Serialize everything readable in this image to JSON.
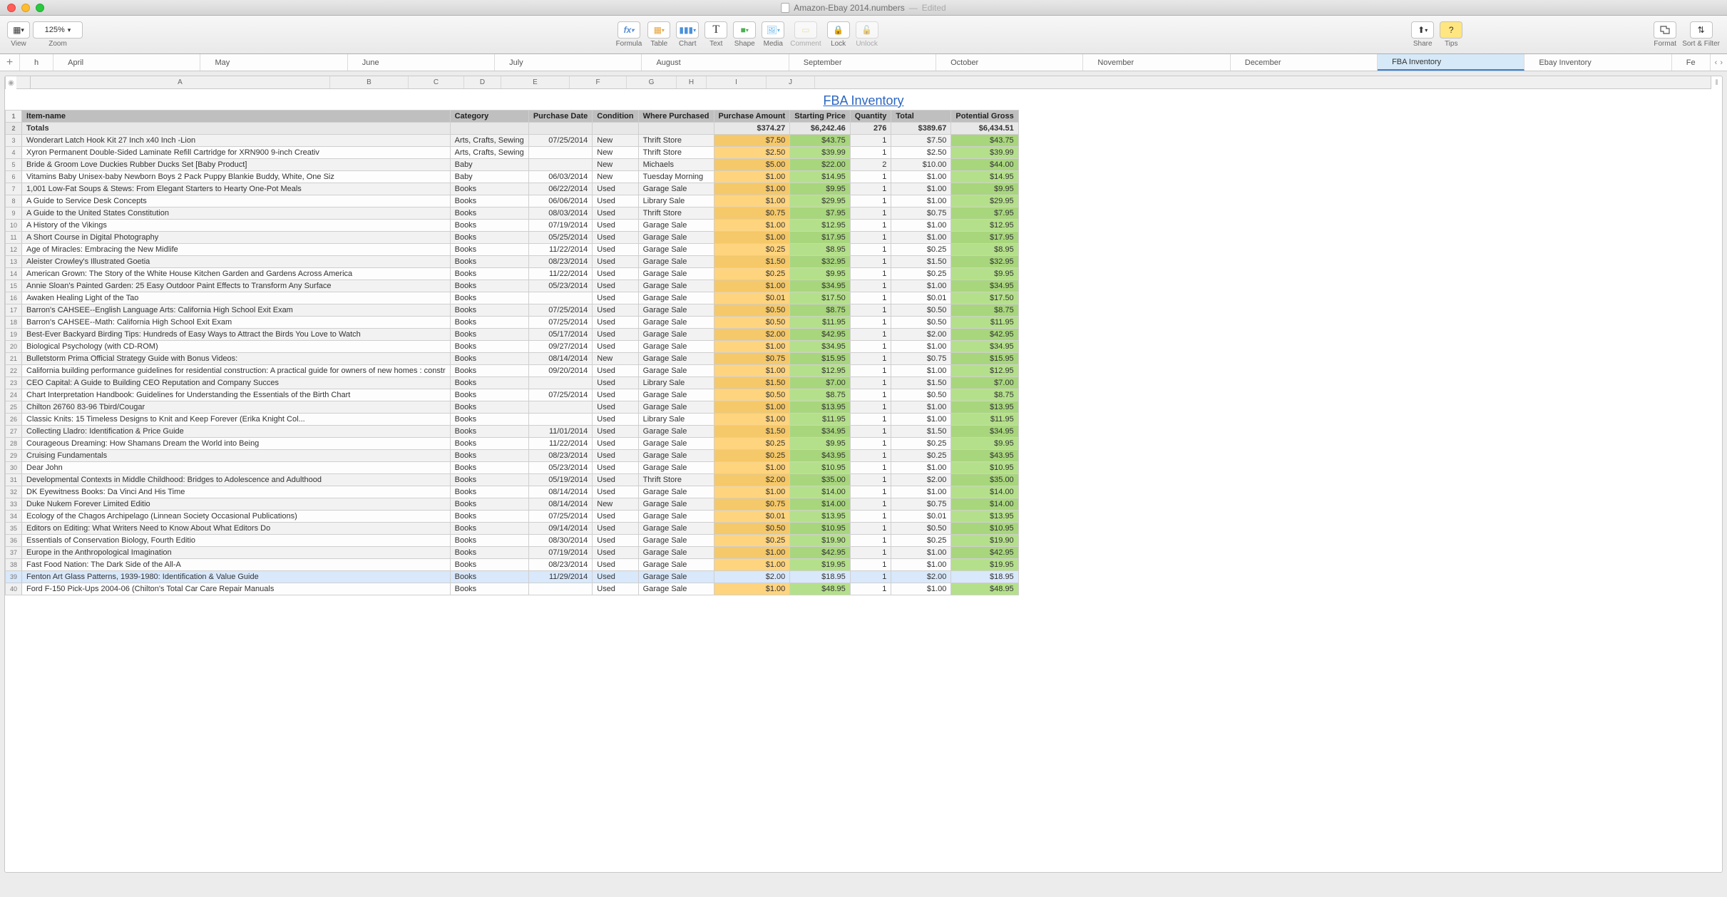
{
  "window": {
    "title": "Amazon-Ebay 2014.numbers",
    "edited": "Edited"
  },
  "toolbar": {
    "view": "View",
    "zoom": "Zoom",
    "zoom_value": "125%",
    "formula": "Formula",
    "table": "Table",
    "chart": "Chart",
    "text": "Text",
    "shape": "Shape",
    "media": "Media",
    "comment": "Comment",
    "lock": "Lock",
    "unlock": "Unlock",
    "share": "Share",
    "tips": "Tips",
    "format": "Format",
    "sortfilter": "Sort & Filter"
  },
  "tabs": [
    "h",
    "April",
    "May",
    "June",
    "July",
    "August",
    "September",
    "October",
    "November",
    "December",
    "FBA Inventory",
    "Ebay Inventory",
    "Fe"
  ],
  "active_tab": "FBA Inventory",
  "column_letters": [
    "A",
    "B",
    "C",
    "D",
    "E",
    "F",
    "G",
    "H",
    "I",
    "J"
  ],
  "sheet_title": "FBA Inventory",
  "headers": [
    "Item-name",
    "Category",
    "Purchase Date",
    "Condition",
    "Where Purchased",
    "Purchase Amount",
    "Starting Price",
    "Quantity",
    "Total",
    "Potential Gross"
  ],
  "totals": {
    "label": "Totals",
    "amount": "$374.27",
    "start": "$6,242.46",
    "qty": "276",
    "total": "$389.67",
    "gross": "$6,434.51"
  },
  "rows": [
    {
      "n": 3,
      "name": "Wonderart Latch Hook Kit 27 Inch x40 Inch -Lion",
      "cat": "Arts, Crafts, Sewing",
      "date": "07/25/2014",
      "cond": "New",
      "where": "Thrift Store",
      "amt": "$7.50",
      "start": "$43.75",
      "qty": "1",
      "tot": "$7.50",
      "gross": "$43.75"
    },
    {
      "n": 4,
      "name": "Xyron Permanent Double-Sided Laminate Refill Cartridge for XRN900 9-inch Creativ",
      "cat": "Arts, Crafts, Sewing",
      "date": "",
      "cond": "New",
      "where": "Thrift Store",
      "amt": "$2.50",
      "start": "$39.99",
      "qty": "1",
      "tot": "$2.50",
      "gross": "$39.99"
    },
    {
      "n": 5,
      "name": "Bride & Groom Love Duckies Rubber Ducks Set [Baby Product]",
      "cat": "Baby",
      "date": "",
      "cond": "New",
      "where": "Michaels",
      "amt": "$5.00",
      "start": "$22.00",
      "qty": "2",
      "tot": "$10.00",
      "gross": "$44.00"
    },
    {
      "n": 6,
      "name": "Vitamins Baby Unisex-baby Newborn Boys 2 Pack Puppy Blankie Buddy, White, One Siz",
      "cat": "Baby",
      "date": "06/03/2014",
      "cond": "New",
      "where": "Tuesday Morning",
      "amt": "$1.00",
      "start": "$14.95",
      "qty": "1",
      "tot": "$1.00",
      "gross": "$14.95"
    },
    {
      "n": 7,
      "name": "1,001 Low-Fat Soups & Stews: From Elegant Starters to Hearty One-Pot Meals",
      "cat": "Books",
      "date": "06/22/2014",
      "cond": "Used",
      "where": "Garage Sale",
      "amt": "$1.00",
      "start": "$9.95",
      "qty": "1",
      "tot": "$1.00",
      "gross": "$9.95"
    },
    {
      "n": 8,
      "name": "A Guide to Service Desk Concepts",
      "cat": "Books",
      "date": "06/06/2014",
      "cond": "Used",
      "where": "Library Sale",
      "amt": "$1.00",
      "start": "$29.95",
      "qty": "1",
      "tot": "$1.00",
      "gross": "$29.95"
    },
    {
      "n": 9,
      "name": "A Guide to the United States Constitution",
      "cat": "Books",
      "date": "08/03/2014",
      "cond": "Used",
      "where": "Thrift Store",
      "amt": "$0.75",
      "start": "$7.95",
      "qty": "1",
      "tot": "$0.75",
      "gross": "$7.95"
    },
    {
      "n": 10,
      "name": "A History of the Vikings",
      "cat": "Books",
      "date": "07/19/2014",
      "cond": "Used",
      "where": "Garage Sale",
      "amt": "$1.00",
      "start": "$12.95",
      "qty": "1",
      "tot": "$1.00",
      "gross": "$12.95"
    },
    {
      "n": 11,
      "name": "A Short Course in Digital Photography",
      "cat": "Books",
      "date": "05/25/2014",
      "cond": "Used",
      "where": "Garage Sale",
      "amt": "$1.00",
      "start": "$17.95",
      "qty": "1",
      "tot": "$1.00",
      "gross": "$17.95"
    },
    {
      "n": 12,
      "name": "Age of Miracles: Embracing the New Midlife",
      "cat": "Books",
      "date": "11/22/2014",
      "cond": "Used",
      "where": "Garage Sale",
      "amt": "$0.25",
      "start": "$8.95",
      "qty": "1",
      "tot": "$0.25",
      "gross": "$8.95"
    },
    {
      "n": 13,
      "name": "Aleister Crowley's Illustrated Goetia",
      "cat": "Books",
      "date": "08/23/2014",
      "cond": "Used",
      "where": "Garage Sale",
      "amt": "$1.50",
      "start": "$32.95",
      "qty": "1",
      "tot": "$1.50",
      "gross": "$32.95"
    },
    {
      "n": 14,
      "name": "American Grown: The Story of the White House Kitchen Garden and Gardens Across America",
      "cat": "Books",
      "date": "11/22/2014",
      "cond": "Used",
      "where": "Garage Sale",
      "amt": "$0.25",
      "start": "$9.95",
      "qty": "1",
      "tot": "$0.25",
      "gross": "$9.95"
    },
    {
      "n": 15,
      "name": "Annie Sloan's Painted Garden: 25 Easy Outdoor Paint Effects to Transform Any Surface",
      "cat": "Books",
      "date": "05/23/2014",
      "cond": "Used",
      "where": "Garage Sale",
      "amt": "$1.00",
      "start": "$34.95",
      "qty": "1",
      "tot": "$1.00",
      "gross": "$34.95"
    },
    {
      "n": 16,
      "name": "Awaken Healing Light of the Tao",
      "cat": "Books",
      "date": "",
      "cond": "Used",
      "where": "Garage Sale",
      "amt": "$0.01",
      "start": "$17.50",
      "qty": "1",
      "tot": "$0.01",
      "gross": "$17.50"
    },
    {
      "n": 17,
      "name": "Barron's CAHSEE--English Language Arts: California High School Exit Exam",
      "cat": "Books",
      "date": "07/25/2014",
      "cond": "Used",
      "where": "Garage Sale",
      "amt": "$0.50",
      "start": "$8.75",
      "qty": "1",
      "tot": "$0.50",
      "gross": "$8.75"
    },
    {
      "n": 18,
      "name": "Barron's CAHSEE--Math: California High School Exit Exam",
      "cat": "Books",
      "date": "07/25/2014",
      "cond": "Used",
      "where": "Garage Sale",
      "amt": "$0.50",
      "start": "$11.95",
      "qty": "1",
      "tot": "$0.50",
      "gross": "$11.95"
    },
    {
      "n": 19,
      "name": "Best-Ever Backyard Birding Tips: Hundreds of Easy Ways to Attract the Birds You Love to Watch",
      "cat": "Books",
      "date": "05/17/2014",
      "cond": "Used",
      "where": "Garage Sale",
      "amt": "$2.00",
      "start": "$42.95",
      "qty": "1",
      "tot": "$2.00",
      "gross": "$42.95"
    },
    {
      "n": 20,
      "name": "Biological Psychology (with CD-ROM)",
      "cat": "Books",
      "date": "09/27/2014",
      "cond": "Used",
      "where": "Garage Sale",
      "amt": "$1.00",
      "start": "$34.95",
      "qty": "1",
      "tot": "$1.00",
      "gross": "$34.95"
    },
    {
      "n": 21,
      "name": "Bulletstorm Prima Official Strategy Guide with Bonus Videos:",
      "cat": "Books",
      "date": "08/14/2014",
      "cond": "New",
      "where": "Garage Sale",
      "amt": "$0.75",
      "start": "$15.95",
      "qty": "1",
      "tot": "$0.75",
      "gross": "$15.95"
    },
    {
      "n": 22,
      "name": "California building performance guidelines for residential construction: A practical guide for owners of new homes : constr",
      "cat": "Books",
      "date": "09/20/2014",
      "cond": "Used",
      "where": "Garage Sale",
      "amt": "$1.00",
      "start": "$12.95",
      "qty": "1",
      "tot": "$1.00",
      "gross": "$12.95"
    },
    {
      "n": 23,
      "name": "CEO Capital: A Guide to Building CEO Reputation and Company Succes",
      "cat": "Books",
      "date": "",
      "cond": "Used",
      "where": "Library Sale",
      "amt": "$1.50",
      "start": "$7.00",
      "qty": "1",
      "tot": "$1.50",
      "gross": "$7.00"
    },
    {
      "n": 24,
      "name": "Chart Interpretation Handbook: Guidelines for Understanding the Essentials of the Birth Chart",
      "cat": "Books",
      "date": "07/25/2014",
      "cond": "Used",
      "where": "Garage Sale",
      "amt": "$0.50",
      "start": "$8.75",
      "qty": "1",
      "tot": "$0.50",
      "gross": "$8.75"
    },
    {
      "n": 25,
      "name": "Chilton 26760 83-96 Tbird/Cougar",
      "cat": "Books",
      "date": "",
      "cond": "Used",
      "where": "Garage Sale",
      "amt": "$1.00",
      "start": "$13.95",
      "qty": "1",
      "tot": "$1.00",
      "gross": "$13.95"
    },
    {
      "n": 26,
      "name": "Classic Knits: 15 Timeless Designs to Knit and Keep Forever (Erika Knight Col...",
      "cat": "Books",
      "date": "",
      "cond": "Used",
      "where": "Library Sale",
      "amt": "$1.00",
      "start": "$11.95",
      "qty": "1",
      "tot": "$1.00",
      "gross": "$11.95"
    },
    {
      "n": 27,
      "name": "Collecting Lladro: Identification & Price Guide",
      "cat": "Books",
      "date": "11/01/2014",
      "cond": "Used",
      "where": "Garage Sale",
      "amt": "$1.50",
      "start": "$34.95",
      "qty": "1",
      "tot": "$1.50",
      "gross": "$34.95"
    },
    {
      "n": 28,
      "name": "Courageous Dreaming: How Shamans Dream the World into Being",
      "cat": "Books",
      "date": "11/22/2014",
      "cond": "Used",
      "where": "Garage Sale",
      "amt": "$0.25",
      "start": "$9.95",
      "qty": "1",
      "tot": "$0.25",
      "gross": "$9.95"
    },
    {
      "n": 29,
      "name": "Cruising Fundamentals",
      "cat": "Books",
      "date": "08/23/2014",
      "cond": "Used",
      "where": "Garage Sale",
      "amt": "$0.25",
      "start": "$43.95",
      "qty": "1",
      "tot": "$0.25",
      "gross": "$43.95"
    },
    {
      "n": 30,
      "name": "Dear John",
      "cat": "Books",
      "date": "05/23/2014",
      "cond": "Used",
      "where": "Garage Sale",
      "amt": "$1.00",
      "start": "$10.95",
      "qty": "1",
      "tot": "$1.00",
      "gross": "$10.95"
    },
    {
      "n": 31,
      "name": "Developmental Contexts in Middle Childhood: Bridges to Adolescence and Adulthood",
      "cat": "Books",
      "date": "05/19/2014",
      "cond": "Used",
      "where": "Thrift Store",
      "amt": "$2.00",
      "start": "$35.00",
      "qty": "1",
      "tot": "$2.00",
      "gross": "$35.00"
    },
    {
      "n": 32,
      "name": "DK Eyewitness Books: Da Vinci And His Time",
      "cat": "Books",
      "date": "08/14/2014",
      "cond": "Used",
      "where": "Garage Sale",
      "amt": "$1.00",
      "start": "$14.00",
      "qty": "1",
      "tot": "$1.00",
      "gross": "$14.00"
    },
    {
      "n": 33,
      "name": "Duke Nukem Forever Limited Editio",
      "cat": "Books",
      "date": "08/14/2014",
      "cond": "New",
      "where": "Garage Sale",
      "amt": "$0.75",
      "start": "$14.00",
      "qty": "1",
      "tot": "$0.75",
      "gross": "$14.00"
    },
    {
      "n": 34,
      "name": "Ecology of the Chagos Archipelago (Linnean Society Occasional Publications)",
      "cat": "Books",
      "date": "07/25/2014",
      "cond": "Used",
      "where": "Garage Sale",
      "amt": "$0.01",
      "start": "$13.95",
      "qty": "1",
      "tot": "$0.01",
      "gross": "$13.95"
    },
    {
      "n": 35,
      "name": "Editors on Editing: What Writers Need to Know About What Editors Do",
      "cat": "Books",
      "date": "09/14/2014",
      "cond": "Used",
      "where": "Garage Sale",
      "amt": "$0.50",
      "start": "$10.95",
      "qty": "1",
      "tot": "$0.50",
      "gross": "$10.95"
    },
    {
      "n": 36,
      "name": "Essentials of Conservation Biology, Fourth Editio",
      "cat": "Books",
      "date": "08/30/2014",
      "cond": "Used",
      "where": "Garage Sale",
      "amt": "$0.25",
      "start": "$19.90",
      "qty": "1",
      "tot": "$0.25",
      "gross": "$19.90"
    },
    {
      "n": 37,
      "name": "Europe in the Anthropological Imagination",
      "cat": "Books",
      "date": "07/19/2014",
      "cond": "Used",
      "where": "Garage Sale",
      "amt": "$1.00",
      "start": "$42.95",
      "qty": "1",
      "tot": "$1.00",
      "gross": "$42.95"
    },
    {
      "n": 38,
      "name": "Fast Food Nation: The Dark Side of the All-A",
      "cat": "Books",
      "date": "08/23/2014",
      "cond": "Used",
      "where": "Garage Sale",
      "amt": "$1.00",
      "start": "$19.95",
      "qty": "1",
      "tot": "$1.00",
      "gross": "$19.95"
    },
    {
      "n": 39,
      "name": "Fenton Art Glass Patterns, 1939-1980: Identification & Value Guide",
      "cat": "Books",
      "date": "11/29/2014",
      "cond": "Used",
      "where": "Garage Sale",
      "amt": "$2.00",
      "start": "$18.95",
      "qty": "1",
      "tot": "$2.00",
      "gross": "$18.95",
      "sel": true
    },
    {
      "n": 40,
      "name": "Ford F-150 Pick-Ups 2004-06 (Chilton's Total Car Care Repair Manuals",
      "cat": "Books",
      "date": "",
      "cond": "Used",
      "where": "Garage Sale",
      "amt": "$1.00",
      "start": "$48.95",
      "qty": "1",
      "tot": "$1.00",
      "gross": "$48.95"
    }
  ],
  "colors": {
    "amount_bg": "#ffd47f",
    "price_bg": "#b5e08b",
    "header_bg": "#bfbfbf",
    "active_tab_bg": "#d6e9f8",
    "title_color": "#2b66c4"
  }
}
